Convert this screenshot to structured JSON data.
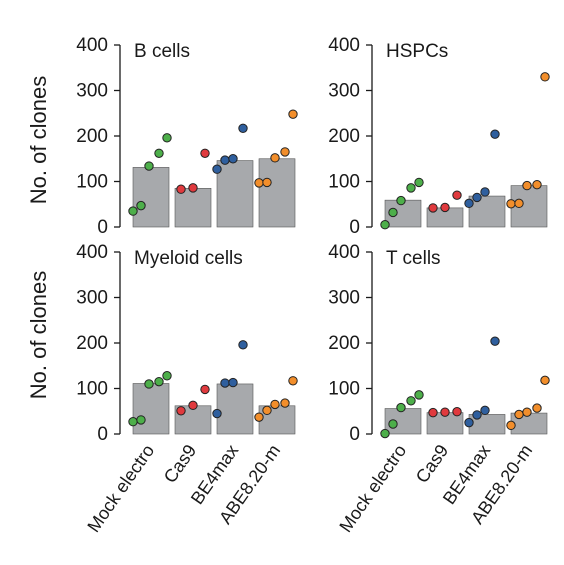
{
  "figure": {
    "ylabel_top": "No. of clones",
    "ylabel_bottom": "No. of clones",
    "categories": [
      "Mock electro",
      "Cas9",
      "BE4max",
      "ABE8.20-m"
    ]
  },
  "chart_data": [
    {
      "type": "bar",
      "title": "B cells",
      "categories": [
        "Mock electro",
        "Cas9",
        "BE4max",
        "ABE8.20-m"
      ],
      "values": [
        131,
        85,
        146,
        150
      ],
      "points": [
        [
          35,
          47,
          134,
          162,
          196
        ],
        [
          83,
          86,
          162
        ],
        [
          127,
          147,
          150,
          217
        ],
        [
          97,
          98,
          152,
          165,
          248
        ]
      ],
      "ylabel": "No. of clones",
      "ylim": [
        0,
        400
      ],
      "yticks": [
        0,
        100,
        200,
        300,
        400
      ]
    },
    {
      "type": "bar",
      "title": "HSPCs",
      "categories": [
        "Mock electro",
        "Cas9",
        "BE4max",
        "ABE8.20-m"
      ],
      "values": [
        59,
        42,
        68,
        91
      ],
      "points": [
        [
          5,
          32,
          58,
          86,
          98
        ],
        [
          42,
          43,
          70
        ],
        [
          52,
          65,
          77,
          204
        ],
        [
          51,
          52,
          91,
          93,
          330
        ]
      ],
      "ylim": [
        0,
        400
      ],
      "yticks": [
        0,
        100,
        200,
        300,
        400
      ]
    },
    {
      "type": "bar",
      "title": "Myeloid cells",
      "categories": [
        "Mock electro",
        "Cas9",
        "BE4max",
        "ABE8.20-m"
      ],
      "values": [
        111,
        62,
        110,
        62
      ],
      "points": [
        [
          27,
          31,
          110,
          115,
          128
        ],
        [
          51,
          63,
          98
        ],
        [
          45,
          112,
          113,
          196
        ],
        [
          37,
          52,
          65,
          68,
          117
        ]
      ],
      "ylabel": "No. of clones",
      "ylim": [
        0,
        400
      ],
      "yticks": [
        0,
        100,
        200,
        300,
        400
      ]
    },
    {
      "type": "bar",
      "title": "T cells",
      "categories": [
        "Mock electro",
        "Cas9",
        "BE4max",
        "ABE8.20-m"
      ],
      "values": [
        56,
        47,
        43,
        46
      ],
      "points": [
        [
          1,
          22,
          58,
          73,
          86
        ],
        [
          47,
          48,
          49
        ],
        [
          25,
          42,
          52,
          204
        ],
        [
          19,
          43,
          48,
          57,
          118
        ]
      ],
      "ylim": [
        0,
        400
      ],
      "yticks": [
        0,
        100,
        200,
        300,
        400
      ]
    }
  ],
  "colors": {
    "bar": "#a7a9ac",
    "bar_stroke": "#555555",
    "dot_stroke": "#222222",
    "series": [
      "#4daf4a",
      "#e03a3e",
      "#2f5f9e",
      "#f28e2b"
    ]
  }
}
